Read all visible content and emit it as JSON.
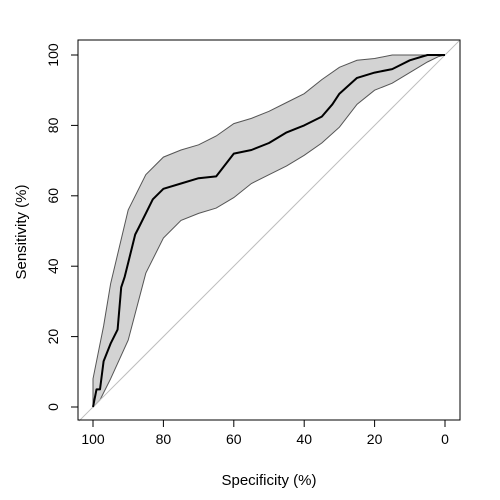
{
  "chart_data": {
    "type": "line",
    "title": "",
    "xlabel": "Specificity (%)",
    "ylabel": "Sensitivity (%)",
    "xlim": [
      100,
      0
    ],
    "ylim": [
      0,
      100
    ],
    "x_reversed": true,
    "x_ticks": [
      "100",
      "80",
      "60",
      "40",
      "20",
      "0"
    ],
    "y_ticks": [
      "0",
      "20",
      "40",
      "60",
      "80",
      "100"
    ],
    "grid": false,
    "legend": "none",
    "colors": {
      "roc_line": "#000000",
      "ci_band_fill": "#d3d3d3",
      "ci_band_edge": "#555555",
      "reference_line": "#bebebe",
      "frame": "#000000"
    },
    "series": [
      {
        "role": "roc-curve",
        "x": [
          100,
          99,
          98,
          97,
          95,
          93,
          92,
          91,
          90,
          89,
          88,
          87,
          85,
          83,
          80,
          75,
          70,
          65,
          60,
          55,
          50,
          45,
          40,
          35,
          32,
          30,
          25,
          20,
          15,
          13,
          10,
          5,
          3,
          0
        ],
        "y": [
          0,
          5,
          5,
          13,
          18,
          22,
          34,
          37,
          41,
          45,
          49,
          51,
          55,
          59,
          62,
          63.5,
          65,
          65.5,
          72,
          73,
          75,
          78,
          80,
          82.5,
          86,
          89,
          93.5,
          95,
          96,
          97,
          98.5,
          100,
          100,
          100
        ]
      },
      {
        "role": "ci-upper",
        "x": [
          100,
          97,
          95,
          90,
          85,
          80,
          75,
          70,
          65,
          60,
          55,
          50,
          45,
          40,
          35,
          30,
          25,
          20,
          15,
          13,
          10,
          5,
          2,
          0
        ],
        "y": [
          8,
          23,
          35,
          56,
          66,
          71,
          73,
          74.5,
          77,
          80.5,
          82,
          84,
          86.5,
          89,
          93,
          96.5,
          98.5,
          99,
          100,
          100,
          100,
          100,
          100,
          100
        ]
      },
      {
        "role": "ci-lower",
        "x": [
          100,
          98,
          95,
          90,
          85,
          80,
          75,
          70,
          65,
          60,
          55,
          50,
          45,
          40,
          35,
          30,
          25,
          20,
          15,
          10,
          5,
          2,
          0
        ],
        "y": [
          0,
          2,
          8,
          19,
          38,
          48,
          53,
          55,
          56.5,
          59.5,
          63.5,
          66,
          68.5,
          71.5,
          75,
          79.5,
          86,
          90,
          92,
          95,
          98,
          99.5,
          100
        ]
      }
    ],
    "reference_line": {
      "from": [
        100,
        0
      ],
      "to": [
        0,
        100
      ]
    }
  }
}
